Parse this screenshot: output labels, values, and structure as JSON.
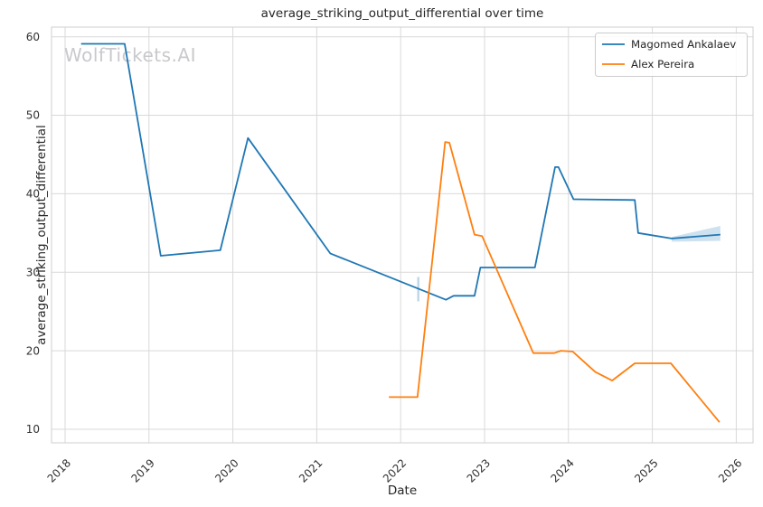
{
  "watermark": "WolfTickets.AI",
  "chart_data": {
    "type": "line",
    "title": "average_striking_output_differential over time",
    "xlabel": "Date",
    "ylabel": "average_striking_output_differential",
    "x_format": "decimal_year",
    "x_ticks": [
      2018,
      2019,
      2020,
      2021,
      2022,
      2023,
      2024,
      2025,
      2026
    ],
    "y_ticks": [
      10,
      20,
      30,
      40,
      50,
      60
    ],
    "xlim": [
      2017.838,
      2026.2
    ],
    "ylim": [
      8.27,
      61.23
    ],
    "grid": true,
    "legend_position": "upper right",
    "series": [
      {
        "name": "Magomed Ankalaev",
        "color": "#1f77b4",
        "points": [
          [
            2018.19,
            59.1
          ],
          [
            2018.71,
            59.1
          ],
          [
            2019.14,
            32.1
          ],
          [
            2019.85,
            32.8
          ],
          [
            2020.18,
            47.1
          ],
          [
            2021.16,
            32.4
          ],
          [
            2022.54,
            26.5
          ],
          [
            2022.63,
            27.0
          ],
          [
            2022.88,
            27.0
          ],
          [
            2022.95,
            30.6
          ],
          [
            2023.6,
            30.6
          ],
          [
            2023.84,
            43.4
          ],
          [
            2023.88,
            43.4
          ],
          [
            2024.06,
            39.3
          ],
          [
            2024.79,
            39.2
          ],
          [
            2024.83,
            35.0
          ],
          [
            2025.23,
            34.3
          ],
          [
            2025.81,
            34.8
          ]
        ],
        "ci_band": {
          "x": [
            2025.23,
            2025.81
          ],
          "upper": [
            34.5,
            35.9
          ],
          "lower": [
            33.9,
            34.0
          ]
        },
        "ci_strip": {
          "x": 2022.21,
          "upper": 29.4,
          "lower": 26.3
        }
      },
      {
        "name": "Alex Pereira",
        "color": "#ff7f0e",
        "points": [
          [
            2021.86,
            14.1
          ],
          [
            2022.2,
            14.1
          ],
          [
            2022.53,
            46.6
          ],
          [
            2022.58,
            46.5
          ],
          [
            2022.88,
            34.8
          ],
          [
            2022.97,
            34.6
          ],
          [
            2023.58,
            19.7
          ],
          [
            2023.83,
            19.7
          ],
          [
            2023.91,
            20.0
          ],
          [
            2024.05,
            19.9
          ],
          [
            2024.32,
            17.3
          ],
          [
            2024.52,
            16.2
          ],
          [
            2024.79,
            18.4
          ],
          [
            2025.22,
            18.4
          ],
          [
            2025.8,
            10.9
          ]
        ]
      }
    ]
  }
}
